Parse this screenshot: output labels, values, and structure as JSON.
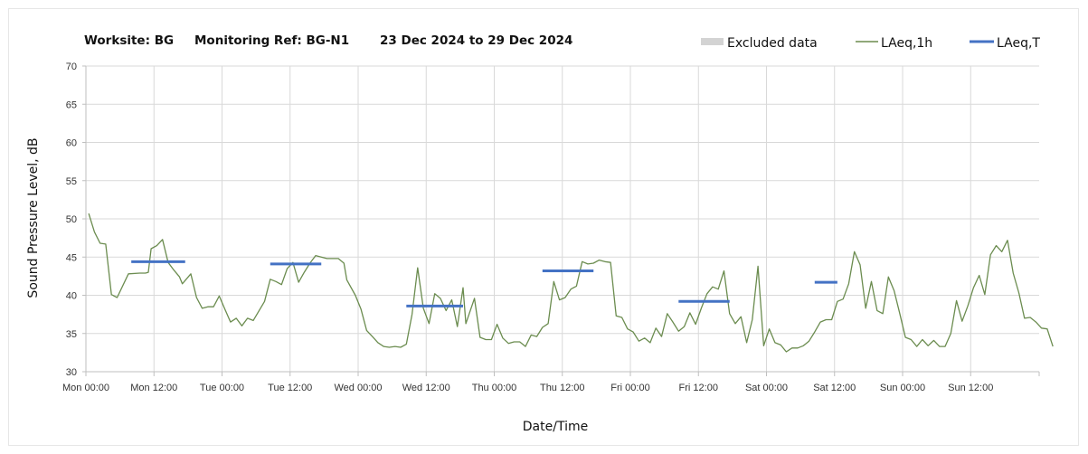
{
  "header": {
    "worksite": "Worksite: BG",
    "monitoring_ref": "Monitoring Ref: BG-N1",
    "date_range": "23 Dec 2024 to 29 Dec 2024"
  },
  "legend": {
    "excluded_label": "Excluded data",
    "laeq1h_label": "LAeq,1h",
    "laeqT_label": "LAeq,T"
  },
  "colors": {
    "laeq1h": "#6b8c4f",
    "laeqT": "#4472c4",
    "excluded": "#d3d3d3",
    "grid": "#d9d9d9",
    "axis": "#bfbfbf"
  },
  "chart_data": {
    "type": "line",
    "xlabel": "Date/Time",
    "ylabel": "Sound Pressure Level, dB",
    "ylim": [
      30,
      70
    ],
    "y_ticks": [
      "30",
      "35",
      "40",
      "45",
      "50",
      "55",
      "60",
      "65",
      "70"
    ],
    "xlim_hours": [
      0,
      168
    ],
    "x_ticks": [
      {
        "hour": 0,
        "label": "Mon 00:00"
      },
      {
        "hour": 12,
        "label": "Mon 12:00"
      },
      {
        "hour": 24,
        "label": "Tue 00:00"
      },
      {
        "hour": 36,
        "label": "Tue 12:00"
      },
      {
        "hour": 48,
        "label": "Wed 00:00"
      },
      {
        "hour": 60,
        "label": "Wed 12:00"
      },
      {
        "hour": 72,
        "label": "Thu 00:00"
      },
      {
        "hour": 84,
        "label": "Thu 12:00"
      },
      {
        "hour": 96,
        "label": "Fri 00:00"
      },
      {
        "hour": 108,
        "label": "Fri 12:00"
      },
      {
        "hour": 120,
        "label": "Sat 00:00"
      },
      {
        "hour": 132,
        "label": "Sat 12:00"
      },
      {
        "hour": 144,
        "label": "Sun 00:00"
      },
      {
        "hour": 156,
        "label": "Sun 12:00"
      }
    ],
    "grid": true,
    "legend_position": "top-right",
    "series": [
      {
        "name": "LAeq,1h",
        "points": [
          [
            0.5,
            50.7
          ],
          [
            1.5,
            48.3
          ],
          [
            2.5,
            46.8
          ],
          [
            3.5,
            46.7
          ],
          [
            4.5,
            40.1
          ],
          [
            5.5,
            39.7
          ],
          [
            7.5,
            42.8
          ],
          [
            9.5,
            42.9
          ],
          [
            10.5,
            42.9
          ],
          [
            11.0,
            43.0
          ],
          [
            11.5,
            46.1
          ],
          [
            12.5,
            46.5
          ],
          [
            13.5,
            47.3
          ],
          [
            14.5,
            44.3
          ],
          [
            15.5,
            43.3
          ],
          [
            16.5,
            42.4
          ],
          [
            17.0,
            41.5
          ],
          [
            18.5,
            42.8
          ],
          [
            19.5,
            39.7
          ],
          [
            20.5,
            38.3
          ],
          [
            21.5,
            38.5
          ],
          [
            22.5,
            38.5
          ],
          [
            23.5,
            39.9
          ],
          [
            24.5,
            38.2
          ],
          [
            25.5,
            36.5
          ],
          [
            26.5,
            37.0
          ],
          [
            27.5,
            36.0
          ],
          [
            28.5,
            37.0
          ],
          [
            29.5,
            36.7
          ],
          [
            31.5,
            39.2
          ],
          [
            32.5,
            42.1
          ],
          [
            33.5,
            41.8
          ],
          [
            34.5,
            41.4
          ],
          [
            35.5,
            43.5
          ],
          [
            36.5,
            44.3
          ],
          [
            37.5,
            41.7
          ],
          [
            38.5,
            43.0
          ],
          [
            39.5,
            44.2
          ],
          [
            40.5,
            45.2
          ],
          [
            41.5,
            45.0
          ],
          [
            42.5,
            44.8
          ],
          [
            43.5,
            44.8
          ],
          [
            44.5,
            44.8
          ],
          [
            45.5,
            44.2
          ],
          [
            46.0,
            42.0
          ],
          [
            47.5,
            40.0
          ],
          [
            48.5,
            38.2
          ],
          [
            49.5,
            35.4
          ],
          [
            50.5,
            34.6
          ],
          [
            51.5,
            33.8
          ],
          [
            52.5,
            33.3
          ],
          [
            53.5,
            33.2
          ],
          [
            54.5,
            33.3
          ],
          [
            55.5,
            33.2
          ],
          [
            56.5,
            33.6
          ],
          [
            57.5,
            37.5
          ],
          [
            58.5,
            43.6
          ],
          [
            59.5,
            38.3
          ],
          [
            60.5,
            36.3
          ],
          [
            61.5,
            40.2
          ],
          [
            62.5,
            39.6
          ],
          [
            63.5,
            38.0
          ],
          [
            64.5,
            39.4
          ],
          [
            65.5,
            35.9
          ],
          [
            66.5,
            41.0
          ],
          [
            67.0,
            36.3
          ],
          [
            68.5,
            39.6
          ],
          [
            69.5,
            34.5
          ],
          [
            70.5,
            34.2
          ],
          [
            71.5,
            34.2
          ],
          [
            72.5,
            36.2
          ],
          [
            73.5,
            34.4
          ],
          [
            74.5,
            33.7
          ],
          [
            75.5,
            33.9
          ],
          [
            76.5,
            33.9
          ],
          [
            77.5,
            33.3
          ],
          [
            78.5,
            34.8
          ],
          [
            79.5,
            34.6
          ],
          [
            80.5,
            35.8
          ],
          [
            81.5,
            36.3
          ],
          [
            82.5,
            41.8
          ],
          [
            83.5,
            39.4
          ],
          [
            84.5,
            39.7
          ],
          [
            85.5,
            40.8
          ],
          [
            86.5,
            41.2
          ],
          [
            87.5,
            44.4
          ],
          [
            88.5,
            44.1
          ],
          [
            89.5,
            44.2
          ],
          [
            90.5,
            44.6
          ],
          [
            91.5,
            44.4
          ],
          [
            92.5,
            44.3
          ],
          [
            93.5,
            37.3
          ],
          [
            94.5,
            37.1
          ],
          [
            95.5,
            35.6
          ],
          [
            96.5,
            35.2
          ],
          [
            97.5,
            34.0
          ],
          [
            98.5,
            34.4
          ],
          [
            99.5,
            33.8
          ],
          [
            100.5,
            35.7
          ],
          [
            101.5,
            34.6
          ],
          [
            102.5,
            37.6
          ],
          [
            103.5,
            36.5
          ],
          [
            104.5,
            35.3
          ],
          [
            105.5,
            35.9
          ],
          [
            106.5,
            37.7
          ],
          [
            107.5,
            36.2
          ],
          [
            108.5,
            38.3
          ],
          [
            109.5,
            40.2
          ],
          [
            110.5,
            41.1
          ],
          [
            111.5,
            40.8
          ],
          [
            112.5,
            43.2
          ],
          [
            113.5,
            37.6
          ],
          [
            114.5,
            36.3
          ],
          [
            115.5,
            37.2
          ],
          [
            116.5,
            33.8
          ],
          [
            117.5,
            36.8
          ],
          [
            118.5,
            43.8
          ],
          [
            119.5,
            33.4
          ],
          [
            120.5,
            35.6
          ],
          [
            121.5,
            33.8
          ],
          [
            122.5,
            33.5
          ],
          [
            123.5,
            32.6
          ],
          [
            124.5,
            33.1
          ],
          [
            125.5,
            33.1
          ],
          [
            126.5,
            33.4
          ],
          [
            127.5,
            34.0
          ],
          [
            128.5,
            35.2
          ],
          [
            129.5,
            36.5
          ],
          [
            130.5,
            36.8
          ],
          [
            131.5,
            36.8
          ],
          [
            132.5,
            39.2
          ],
          [
            133.5,
            39.5
          ],
          [
            134.5,
            41.5
          ],
          [
            135.5,
            45.7
          ],
          [
            136.5,
            44.0
          ],
          [
            137.5,
            38.3
          ],
          [
            138.5,
            41.8
          ],
          [
            139.5,
            38.0
          ],
          [
            140.5,
            37.6
          ],
          [
            141.5,
            42.4
          ],
          [
            142.5,
            40.6
          ],
          [
            143.5,
            37.6
          ],
          [
            144.5,
            34.5
          ],
          [
            145.5,
            34.2
          ],
          [
            146.5,
            33.3
          ],
          [
            147.5,
            34.2
          ],
          [
            148.5,
            33.4
          ],
          [
            149.5,
            34.1
          ],
          [
            150.5,
            33.3
          ],
          [
            151.5,
            33.3
          ],
          [
            152.5,
            35.0
          ],
          [
            153.5,
            39.3
          ],
          [
            154.5,
            36.6
          ],
          [
            155.5,
            38.6
          ],
          [
            156.5,
            41.0
          ],
          [
            157.5,
            42.6
          ],
          [
            158.5,
            40.1
          ],
          [
            159.5,
            45.3
          ],
          [
            160.5,
            46.5
          ],
          [
            161.5,
            45.7
          ],
          [
            162.5,
            47.2
          ],
          [
            163.5,
            42.9
          ],
          [
            164.5,
            40.3
          ],
          [
            165.5,
            37.0
          ],
          [
            166.5,
            37.1
          ],
          [
            167.5,
            36.5
          ],
          [
            168.5,
            35.7
          ],
          [
            169.5,
            35.6
          ],
          [
            170.5,
            33.3
          ]
        ]
      },
      {
        "name": "LAeq,T",
        "segments": [
          {
            "x": [
              8,
              17.5
            ],
            "y": 44.4
          },
          {
            "x": [
              32.5,
              41.5
            ],
            "y": 44.1
          },
          {
            "x": [
              56.5,
              66.5
            ],
            "y": 38.6
          },
          {
            "x": [
              80.5,
              89.5
            ],
            "y": 43.2
          },
          {
            "x": [
              104.5,
              113.5
            ],
            "y": 39.2
          },
          {
            "x": [
              128.5,
              132.5
            ],
            "y": 41.7
          }
        ]
      }
    ]
  }
}
